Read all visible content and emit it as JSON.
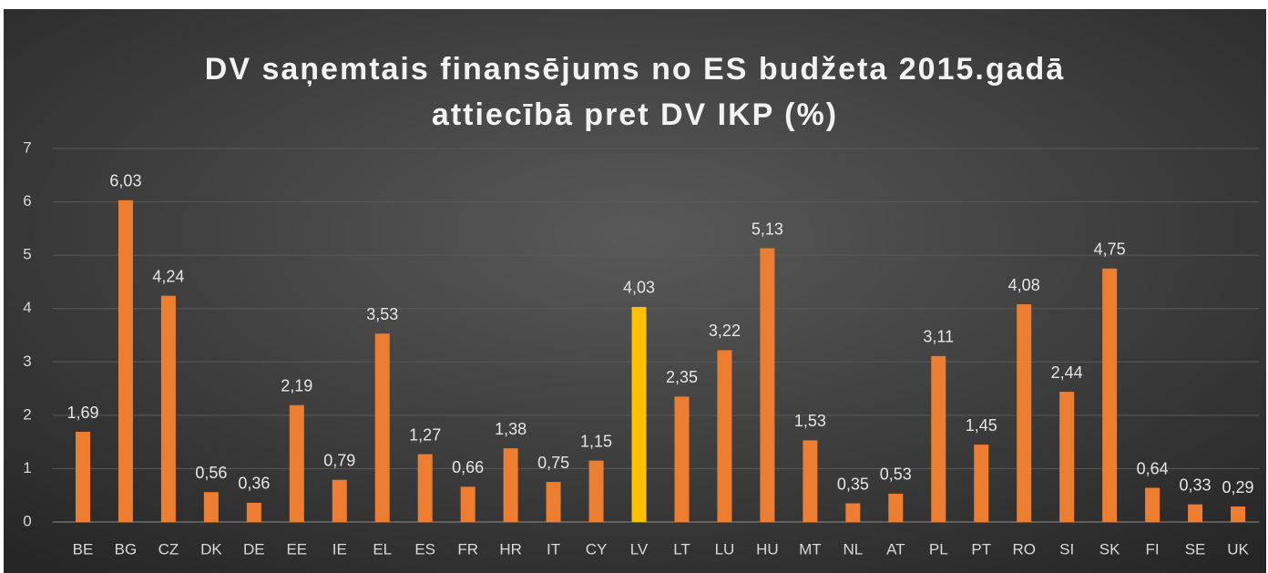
{
  "chart_data": {
    "type": "bar",
    "title": [
      "DV saņemtais finansējums no ES budžeta 2015.gadā",
      "attiecībā pret DV IKP (%)"
    ],
    "categories": [
      "BE",
      "BG",
      "CZ",
      "DK",
      "DE",
      "EE",
      "IE",
      "EL",
      "ES",
      "FR",
      "HR",
      "IT",
      "CY",
      "LV",
      "LT",
      "LU",
      "HU",
      "MT",
      "NL",
      "AT",
      "PL",
      "PT",
      "RO",
      "SI",
      "SK",
      "FI",
      "SE",
      "UK"
    ],
    "values": [
      1.69,
      6.03,
      4.24,
      0.56,
      0.36,
      2.19,
      0.79,
      3.53,
      1.27,
      0.66,
      1.38,
      0.75,
      1.15,
      4.03,
      2.35,
      3.22,
      5.13,
      1.53,
      0.35,
      0.53,
      3.11,
      1.45,
      4.08,
      2.44,
      4.75,
      0.64,
      0.33,
      0.29
    ],
    "value_labels": [
      "1,69",
      "6,03",
      "4,24",
      "0,56",
      "0,36",
      "2,19",
      "0,79",
      "3,53",
      "1,27",
      "0,66",
      "1,38",
      "0,75",
      "1,15",
      "4,03",
      "2,35",
      "3,22",
      "5,13",
      "1,53",
      "0,35",
      "0,53",
      "3,11",
      "1,45",
      "4,08",
      "2,44",
      "4,75",
      "0,64",
      "0,33",
      "0,29"
    ],
    "colors": [
      "#ed7d31",
      "#ed7d31",
      "#ed7d31",
      "#ed7d31",
      "#ed7d31",
      "#ed7d31",
      "#ed7d31",
      "#ed7d31",
      "#ed7d31",
      "#ed7d31",
      "#ed7d31",
      "#ed7d31",
      "#ed7d31",
      "#ffc000",
      "#ed7d31",
      "#ed7d31",
      "#ed7d31",
      "#ed7d31",
      "#ed7d31",
      "#ed7d31",
      "#ed7d31",
      "#ed7d31",
      "#ed7d31",
      "#ed7d31",
      "#ed7d31",
      "#ed7d31",
      "#ed7d31",
      "#ed7d31"
    ],
    "ylim": [
      0,
      7
    ],
    "yticks": [
      0,
      1,
      2,
      3,
      4,
      5,
      6,
      7
    ],
    "grid": true
  }
}
